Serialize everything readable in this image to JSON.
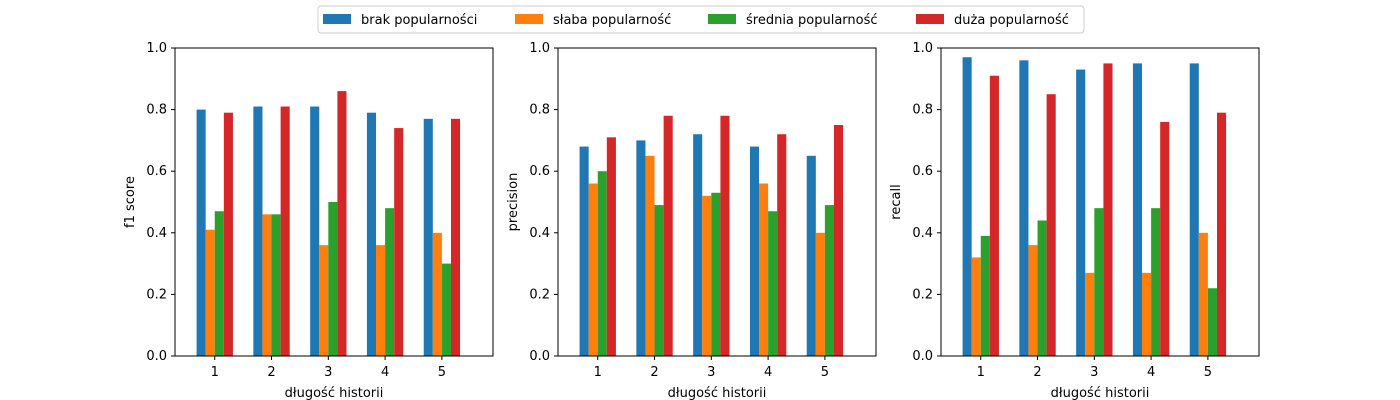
{
  "legend": {
    "items": [
      {
        "label": "brak popularności",
        "color": "#1f77b4"
      },
      {
        "label": "słaba popularność",
        "color": "#ff7f0e"
      },
      {
        "label": "średnia popularność",
        "color": "#2ca02c"
      },
      {
        "label": "duża popularność",
        "color": "#d62728"
      }
    ],
    "placement": "top-center"
  },
  "chart_data": [
    {
      "type": "bar",
      "xlabel": "długość historii",
      "ylabel": "f1 score",
      "ylim": [
        0,
        1
      ],
      "yticks": [
        "0.0",
        "0.2",
        "0.4",
        "0.6",
        "0.8",
        "1.0"
      ],
      "categories": [
        "1",
        "2",
        "3",
        "4",
        "5"
      ],
      "grid": false,
      "series": [
        {
          "name": "brak popularności",
          "values": [
            0.8,
            0.81,
            0.81,
            0.79,
            0.77
          ]
        },
        {
          "name": "słaba popularność",
          "values": [
            0.41,
            0.46,
            0.36,
            0.36,
            0.4
          ]
        },
        {
          "name": "średnia popularność",
          "values": [
            0.47,
            0.46,
            0.5,
            0.48,
            0.3
          ]
        },
        {
          "name": "duża popularność",
          "values": [
            0.79,
            0.81,
            0.86,
            0.74,
            0.77
          ]
        }
      ]
    },
    {
      "type": "bar",
      "xlabel": "długość historii",
      "ylabel": "precision",
      "ylim": [
        0,
        1
      ],
      "yticks": [
        "0.0",
        "0.2",
        "0.4",
        "0.6",
        "0.8",
        "1.0"
      ],
      "categories": [
        "1",
        "2",
        "3",
        "4",
        "5"
      ],
      "grid": false,
      "series": [
        {
          "name": "brak popularności",
          "values": [
            0.68,
            0.7,
            0.72,
            0.68,
            0.65
          ]
        },
        {
          "name": "słaba popularność",
          "values": [
            0.56,
            0.65,
            0.52,
            0.56,
            0.4
          ]
        },
        {
          "name": "średnia popularność",
          "values": [
            0.6,
            0.49,
            0.53,
            0.47,
            0.49
          ]
        },
        {
          "name": "duża popularność",
          "values": [
            0.71,
            0.78,
            0.78,
            0.72,
            0.75
          ]
        }
      ]
    },
    {
      "type": "bar",
      "xlabel": "długość historii",
      "ylabel": "recall",
      "ylim": [
        0,
        1
      ],
      "yticks": [
        "0.0",
        "0.2",
        "0.4",
        "0.6",
        "0.8",
        "1.0"
      ],
      "categories": [
        "1",
        "2",
        "3",
        "4",
        "5"
      ],
      "grid": false,
      "series": [
        {
          "name": "brak popularności",
          "values": [
            0.97,
            0.96,
            0.93,
            0.95,
            0.95
          ]
        },
        {
          "name": "słaba popularność",
          "values": [
            0.32,
            0.36,
            0.27,
            0.27,
            0.4
          ]
        },
        {
          "name": "średnia popularność",
          "values": [
            0.39,
            0.44,
            0.48,
            0.48,
            0.22
          ]
        },
        {
          "name": "duża popularność",
          "values": [
            0.91,
            0.85,
            0.95,
            0.76,
            0.79
          ]
        }
      ]
    }
  ]
}
